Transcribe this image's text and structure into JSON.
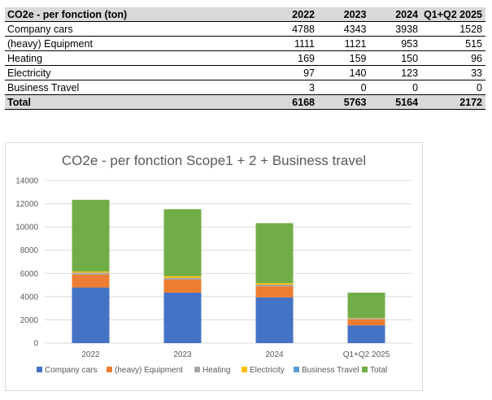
{
  "table": {
    "columns": [
      "CO2e - per fonction (ton)",
      "2022",
      "2023",
      "2024",
      "Q1+Q2 2025"
    ],
    "rows": [
      {
        "label": "Company cars",
        "values": [
          "4788",
          "4343",
          "3938",
          "1528"
        ]
      },
      {
        "label": "(heavy) Equipment",
        "values": [
          "1111",
          "1121",
          "953",
          "515"
        ]
      },
      {
        "label": "Heating",
        "values": [
          "169",
          "159",
          "150",
          "96"
        ]
      },
      {
        "label": "Electricity",
        "values": [
          "97",
          "140",
          "123",
          "33"
        ]
      },
      {
        "label": "Business Travel",
        "values": [
          "3",
          "0",
          "0",
          "0"
        ]
      }
    ],
    "total": {
      "label": "Total",
      "values": [
        "6168",
        "5763",
        "5164",
        "2172"
      ]
    }
  },
  "chart_data": {
    "type": "bar",
    "stacked": true,
    "title": "CO2e - per fonction Scope1 + 2 + Business travel",
    "categories": [
      "2022",
      "2023",
      "2024",
      "Q1+Q2 2025"
    ],
    "series": [
      {
        "name": "Company cars",
        "color": "#4472c4",
        "values": [
          4788,
          4343,
          3938,
          1528
        ]
      },
      {
        "name": "(heavy) Equipment",
        "color": "#ed7d31",
        "values": [
          1111,
          1121,
          953,
          515
        ]
      },
      {
        "name": "Heating",
        "color": "#a5a5a5",
        "values": [
          169,
          159,
          150,
          96
        ]
      },
      {
        "name": "Electricity",
        "color": "#ffc000",
        "values": [
          97,
          140,
          123,
          33
        ]
      },
      {
        "name": "Business Travel",
        "color": "#5b9bd5",
        "values": [
          3,
          0,
          0,
          0
        ]
      },
      {
        "name": "Total",
        "color": "#70ad47",
        "values": [
          6168,
          5763,
          5164,
          2172
        ]
      }
    ],
    "ylim": [
      0,
      14000
    ],
    "yticks": [
      "0",
      "2000",
      "4000",
      "6000",
      "8000",
      "10000",
      "12000",
      "14000"
    ],
    "grid": true,
    "legend_position": "bottom"
  }
}
